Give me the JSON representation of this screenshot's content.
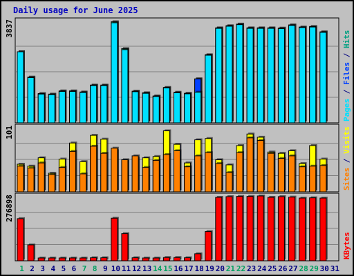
{
  "chart_data": {
    "type": "bar",
    "title": "Daily usage for June 2025",
    "days": [
      "1",
      "2",
      "3",
      "4",
      "5",
      "6",
      "7",
      "8",
      "9",
      "10",
      "11",
      "12",
      "13",
      "14",
      "15",
      "16",
      "17",
      "18",
      "19",
      "20",
      "21",
      "22",
      "23",
      "24",
      "25",
      "26",
      "27",
      "28",
      "29",
      "30",
      "31"
    ],
    "weekend_days": [
      "1",
      "7",
      "8",
      "14",
      "15",
      "21",
      "22",
      "28",
      "29"
    ],
    "panels": [
      {
        "id": "hits",
        "ymax_label": "3837",
        "ymax": 3837,
        "legend": [
          {
            "text": "Pages",
            "color": "#00e0ff"
          },
          {
            "text": " / ",
            "color": "#000080"
          },
          {
            "text": "Files",
            "color": "#0040ff"
          },
          {
            "text": " / ",
            "color": "#000080"
          },
          {
            "text": "Hits",
            "color": "#00a080"
          }
        ],
        "series": [
          {
            "name": "Hits",
            "color": "#00c080",
            "values": [
              2670,
              1720,
              1100,
              1080,
              1200,
              1200,
              1160,
              1420,
              1420,
              3800,
              2790,
              1190,
              1130,
              1010,
              1330,
              1150,
              1110,
              1650,
              2560,
              3570,
              3650,
              3710,
              3570,
              3570,
              3570,
              3560,
              3680,
              3600,
              3620,
              3420,
              0
            ]
          },
          {
            "name": "Files",
            "color": "#0040ff",
            "values": [
              0,
              0,
              0,
              0,
              0,
              0,
              0,
              0,
              0,
              0,
              0,
              0,
              0,
              0,
              0,
              0,
              0,
              1650,
              0,
              0,
              0,
              0,
              0,
              0,
              0,
              0,
              0,
              0,
              0,
              0,
              0
            ]
          },
          {
            "name": "Pages",
            "color": "#00e0ff",
            "values": [
              2670,
              1700,
              1080,
              1060,
              1180,
              1180,
              1140,
              1400,
              1400,
              3760,
              2750,
              1170,
              1110,
              990,
              1310,
              1130,
              1090,
              1150,
              2540,
              3550,
              3630,
              3690,
              3550,
              3550,
              3550,
              3540,
              3660,
              3580,
              3600,
              3400,
              0
            ]
          }
        ]
      },
      {
        "id": "sites",
        "ymax_label": "101",
        "ymax": 101,
        "legend": [
          {
            "text": "Sites",
            "color": "#ff8000"
          },
          {
            "text": " / ",
            "color": "#000080"
          },
          {
            "text": "Visits",
            "color": "#ffff00"
          }
        ],
        "series": [
          {
            "name": "Visits",
            "color": "#ffff00",
            "values": [
              43,
              40,
              53,
              29,
              51,
              76,
              47,
              88,
              82,
              64,
              48,
              52,
              53,
              55,
              95,
              74,
              45,
              81,
              83,
              50,
              42,
              72,
              90,
              85,
              62,
              60,
              64,
              44,
              72,
              51,
              0
            ]
          },
          {
            "name": "Sites",
            "color": "#ff8000",
            "values": [
              40,
              37,
              45,
              27,
              38,
              63,
              28,
              71,
              60,
              68,
              50,
              56,
              38,
              49,
              58,
              64,
              39,
              56,
              61,
              44,
              30,
              61,
              84,
              80,
              60,
              52,
              56,
              39,
              40,
              41,
              0
            ]
          }
        ]
      },
      {
        "id": "kbytes",
        "ymax_label": "276898",
        "ymax": 276898,
        "legend": [
          {
            "text": "KBytes",
            "color": "#ff0000"
          }
        ],
        "series": [
          {
            "name": "KBytes",
            "color": "#ff0000",
            "values": [
              180000,
              68000,
              12000,
              12000,
              12000,
              12000,
              12000,
              13000,
              13000,
              182000,
              116000,
              13000,
              12000,
              12000,
              14000,
              14000,
              13000,
              30000,
              125000,
              271000,
              274000,
              275000,
              275000,
              276898,
              271000,
              274000,
              272000,
              268000,
              269000,
              268000,
              0
            ]
          }
        ]
      }
    ]
  }
}
